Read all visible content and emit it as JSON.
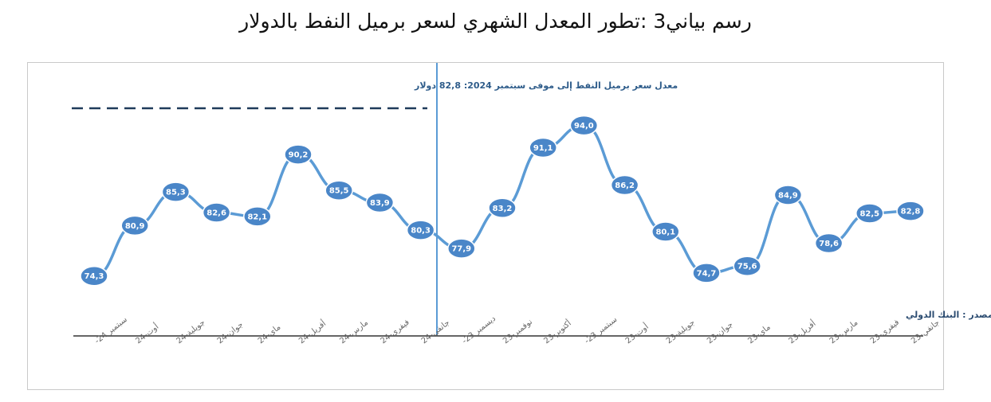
{
  "title": "رسم بياني3 :تطور المعدل الشهري لسعر برميل النفط بالدولار",
  "annotation": "معدل  سعر برميل النفط إلى موفى  سبتمبر 2024:  82,8 دولار",
  "source": "المصدر : البنك الدولي",
  "colors": {
    "line": "#5b9bd5",
    "marker": "#4a86c8",
    "dashed": "#1f3b5a",
    "divider": "#5b9bd5",
    "axis": "#333333"
  },
  "chart_data": {
    "type": "line",
    "title": "رسم بياني3 :تطور المعدل الشهري لسعر برميل النفط بالدولار",
    "categories": [
      "سبتمبر 24-",
      "أوت-24",
      "جويلية-24",
      "جوان-24",
      "ماي-24",
      "أفريل-24",
      "مارس-24",
      "فيفري-24",
      "جانفي-24",
      "ديسمبر 23-",
      "نوفمبر-23",
      "أكتوبر-23",
      "سبتمبر 23-",
      "أوت-23",
      "جويلية-23",
      "جوان-23",
      "ماي-23",
      "أفريل-23",
      "مارس-23",
      "فيفري-23",
      "جانفي-23"
    ],
    "values": [
      74.3,
      80.9,
      85.3,
      82.6,
      82.1,
      90.2,
      85.5,
      83.9,
      80.3,
      77.9,
      83.2,
      91.1,
      94.0,
      86.2,
      80.1,
      74.7,
      75.6,
      84.9,
      78.6,
      82.5,
      82.8
    ],
    "value_labels": [
      "74,3",
      "80,9",
      "85,3",
      "82,6",
      "82,1",
      "90,2",
      "85,5",
      "83,9",
      "80,3",
      "77,9",
      "83,2",
      "91,1",
      "94,0",
      "86,2",
      "80,1",
      "74,7",
      "75,6",
      "84,9",
      "78,6",
      "82,5",
      "82,8"
    ],
    "reference_line": {
      "label": "معدل  سعر برميل النفط إلى موفى  سبتمبر 2024:  82,8 دولار",
      "value": 82.8
    },
    "ylim": [
      50,
      100
    ],
    "grid": false,
    "legend": "none"
  }
}
